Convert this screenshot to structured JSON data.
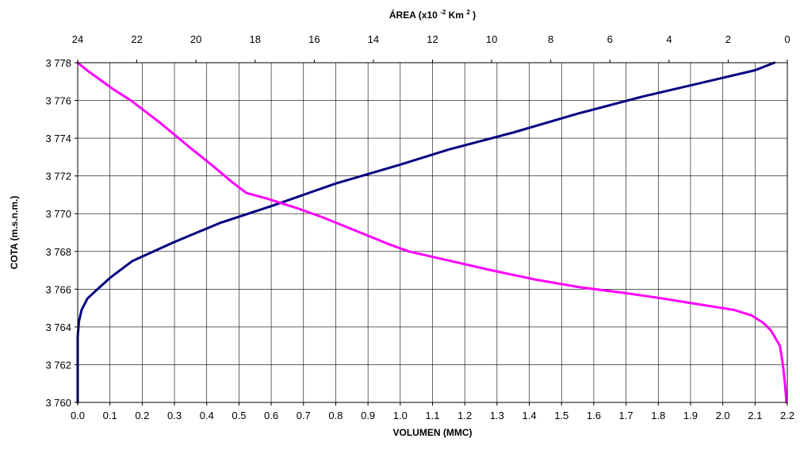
{
  "chart_data": {
    "type": "line",
    "x_bottom": {
      "label": "VOLUMEN (MMC)",
      "range": [
        0.0,
        2.2
      ],
      "ticks": [
        "0.0",
        "0.1",
        "0.2",
        "0.3",
        "0.4",
        "0.5",
        "0.6",
        "0.7",
        "0.8",
        "0.9",
        "1.0",
        "1.1",
        "1.2",
        "1.3",
        "1.4",
        "1.5",
        "1.6",
        "1.7",
        "1.8",
        "1.9",
        "2.0",
        "2.1",
        "2.2"
      ]
    },
    "x_top": {
      "label_main": "ÁREA (x10",
      "label_sup1": "-2",
      "label_mid": " Km",
      "label_sup2": "2",
      "label_end": ")",
      "range": [
        24,
        0
      ],
      "ticks": [
        "24",
        "22",
        "20",
        "18",
        "16",
        "14",
        "12",
        "10",
        "8",
        "6",
        "4",
        "2",
        "0"
      ]
    },
    "y": {
      "label": "COTA (m.s.n.m.)",
      "range": [
        3760,
        3778
      ],
      "ticks": [
        "3 760",
        "3 762",
        "3 764",
        "3 766",
        "3 768",
        "3 770",
        "3 772",
        "3 774",
        "3 776",
        "3 778"
      ]
    },
    "grid": true,
    "series": [
      {
        "axis": "bottom",
        "color": "#000080",
        "points": [
          [
            0.0,
            3760
          ],
          [
            0.0,
            3762
          ],
          [
            0.0,
            3763.5
          ],
          [
            0.004,
            3764.3
          ],
          [
            0.012,
            3764.9
          ],
          [
            0.03,
            3765.5
          ],
          [
            0.055,
            3765.9
          ],
          [
            0.1,
            3766.6
          ],
          [
            0.17,
            3767.5
          ],
          [
            0.3,
            3768.5
          ],
          [
            0.44,
            3769.5
          ],
          [
            0.6,
            3770.4
          ],
          [
            0.8,
            3771.6
          ],
          [
            1.0,
            3772.6
          ],
          [
            1.15,
            3773.4
          ],
          [
            1.35,
            3774.3
          ],
          [
            1.55,
            3775.3
          ],
          [
            1.75,
            3776.2
          ],
          [
            1.95,
            3777.0
          ],
          [
            2.1,
            3777.6
          ],
          [
            2.16,
            3778.0
          ]
        ]
      },
      {
        "axis": "top",
        "color": "#ff00ff",
        "points": [
          [
            24.0,
            3778.0
          ],
          [
            23.6,
            3777.5
          ],
          [
            22.8,
            3776.6
          ],
          [
            22.2,
            3776.0
          ],
          [
            21.2,
            3774.8
          ],
          [
            20.2,
            3773.5
          ],
          [
            19.4,
            3772.5
          ],
          [
            18.8,
            3771.7
          ],
          [
            18.3,
            3771.1
          ],
          [
            17.6,
            3770.8
          ],
          [
            16.6,
            3770.3
          ],
          [
            15.7,
            3769.8
          ],
          [
            14.6,
            3769.1
          ],
          [
            13.5,
            3768.4
          ],
          [
            12.8,
            3768.0
          ],
          [
            11.4,
            3767.5
          ],
          [
            10.0,
            3767.0
          ],
          [
            8.5,
            3766.5
          ],
          [
            7.0,
            3766.1
          ],
          [
            5.5,
            3765.8
          ],
          [
            4.2,
            3765.5
          ],
          [
            3.0,
            3765.2
          ],
          [
            1.8,
            3764.9
          ],
          [
            1.2,
            3764.6
          ],
          [
            0.8,
            3764.2
          ],
          [
            0.55,
            3763.8
          ],
          [
            0.25,
            3763.0
          ],
          [
            0.15,
            3762.0
          ],
          [
            0.08,
            3761.0
          ],
          [
            0.03,
            3760.0
          ]
        ]
      }
    ]
  }
}
